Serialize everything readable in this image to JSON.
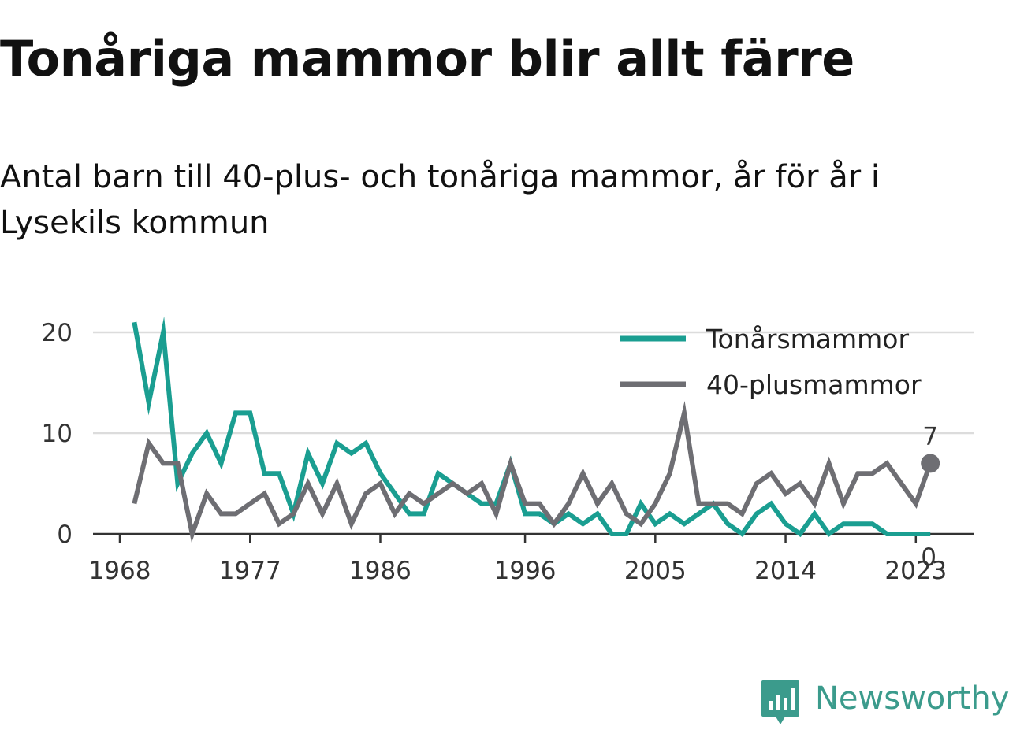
{
  "header": {
    "title": "Tonåriga mammor blir allt färre",
    "subtitle": "Antal barn till 40-plus- och tonåriga mammor, år för år i Lysekils kommun"
  },
  "chart_data": {
    "type": "line",
    "x": [
      1969,
      1970,
      1971,
      1972,
      1973,
      1974,
      1975,
      1976,
      1977,
      1978,
      1979,
      1980,
      1981,
      1982,
      1983,
      1984,
      1985,
      1986,
      1987,
      1988,
      1989,
      1990,
      1991,
      1992,
      1993,
      1994,
      1995,
      1996,
      1997,
      1998,
      1999,
      2000,
      2001,
      2002,
      2003,
      2004,
      2005,
      2006,
      2007,
      2008,
      2009,
      2010,
      2011,
      2012,
      2013,
      2014,
      2015,
      2016,
      2017,
      2018,
      2019,
      2020,
      2021,
      2022,
      2023,
      2024
    ],
    "series": [
      {
        "name": "Tonårsmammor",
        "color": "#1a9e91",
        "values": [
          21,
          13,
          20,
          5,
          8,
          10,
          7,
          12,
          12,
          6,
          6,
          2,
          8,
          5,
          9,
          8,
          9,
          6,
          4,
          2,
          2,
          6,
          5,
          4,
          3,
          3,
          7,
          2,
          2,
          1,
          2,
          1,
          2,
          0,
          0,
          3,
          1,
          2,
          1,
          2,
          3,
          1,
          0,
          2,
          3,
          1,
          0,
          2,
          0,
          1,
          1,
          1,
          0,
          0,
          0,
          0
        ]
      },
      {
        "name": "40-plusmammor",
        "color": "#6e6e73",
        "values": [
          3,
          9,
          7,
          7,
          0,
          4,
          2,
          2,
          3,
          4,
          1,
          2,
          5,
          2,
          5,
          1,
          4,
          5,
          2,
          4,
          3,
          4,
          5,
          4,
          5,
          2,
          7,
          3,
          3,
          1,
          3,
          6,
          3,
          5,
          2,
          1,
          3,
          6,
          12,
          3,
          3,
          3,
          2,
          5,
          6,
          4,
          5,
          3,
          7,
          3,
          6,
          6,
          7,
          5,
          3,
          7
        ]
      }
    ],
    "end_labels": [
      "0",
      "7"
    ],
    "x_ticks": [
      "1968",
      "1977",
      "1986",
      "1996",
      "2005",
      "2014",
      "2023"
    ],
    "y_ticks": [
      "0",
      "10",
      "20"
    ],
    "xlim": [
      1968,
      2024
    ],
    "ylim": [
      0,
      21
    ],
    "grid": "horizontal",
    "legend_position": "top-right"
  },
  "brand": {
    "name": "Newsworthy",
    "color": "#3b9b8c",
    "icon": "bar-chart-speech-bubble-icon"
  }
}
